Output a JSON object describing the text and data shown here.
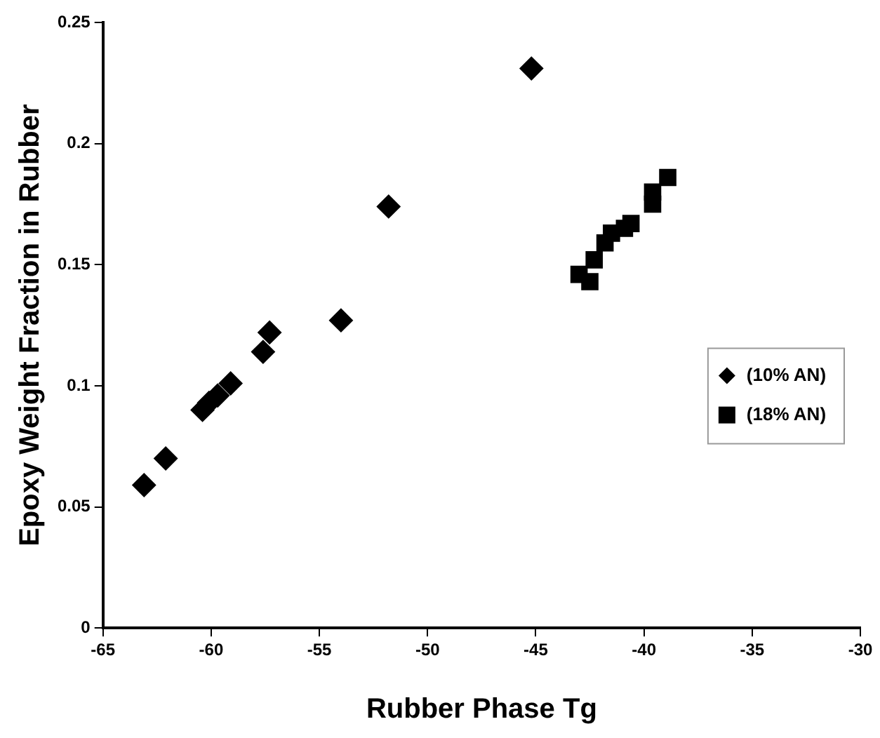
{
  "chart_data": {
    "type": "scatter",
    "xlabel": "Rubber Phase Tg",
    "ylabel": "Epoxy Weight Fraction in Rubber",
    "xlim": [
      -65,
      -30
    ],
    "xticks": [
      -65,
      -60,
      -55,
      -50,
      -45,
      -40,
      -35,
      -30
    ],
    "ylim": [
      0,
      0.25
    ],
    "yticks": [
      0,
      0.05,
      0.1,
      0.15,
      0.2,
      0.25
    ],
    "grid": false,
    "legend": "right",
    "series": [
      {
        "name": "(10% AN)",
        "color": "#000000",
        "marker": "diamond",
        "x": [
          -63.1,
          -62.1,
          -60.4,
          -60.1,
          -59.7,
          -59.1,
          -57.6,
          -57.3,
          -54.0,
          -51.8,
          -45.2
        ],
        "values": [
          0.059,
          0.07,
          0.09,
          0.093,
          0.096,
          0.101,
          0.114,
          0.122,
          0.127,
          0.174,
          0.231
        ]
      },
      {
        "name": "(18% AN)",
        "color": "#000000",
        "marker": "square",
        "x": [
          -43.0,
          -42.5,
          -42.3,
          -41.8,
          -41.5,
          -40.9,
          -40.6,
          -39.6,
          -39.6,
          -38.9
        ],
        "values": [
          0.146,
          0.143,
          0.152,
          0.159,
          0.163,
          0.165,
          0.167,
          0.175,
          0.18,
          0.186
        ]
      }
    ]
  }
}
